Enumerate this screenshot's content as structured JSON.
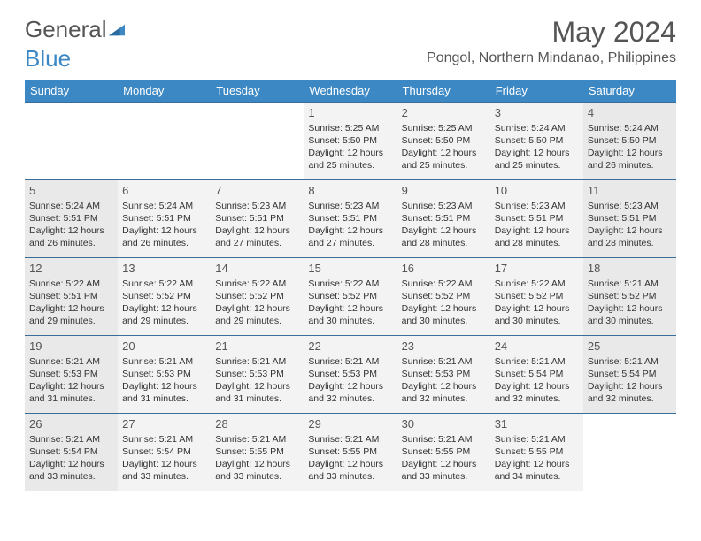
{
  "brand": {
    "part1": "General",
    "part2": "Blue"
  },
  "title": "May 2024",
  "location": "Pongol, Northern Mindanao, Philippines",
  "colors": {
    "header_bg": "#3b88c4",
    "header_text": "#ffffff",
    "cell_bg": "#f3f3f3",
    "weekend_bg": "#e9e9e9",
    "border": "#3b6d99",
    "title_text": "#555555"
  },
  "day_headers": [
    "Sunday",
    "Monday",
    "Tuesday",
    "Wednesday",
    "Thursday",
    "Friday",
    "Saturday"
  ],
  "weeks": [
    [
      null,
      null,
      null,
      {
        "d": "1",
        "sr": "5:25 AM",
        "ss": "5:50 PM",
        "dl": "12 hours and 25 minutes."
      },
      {
        "d": "2",
        "sr": "5:25 AM",
        "ss": "5:50 PM",
        "dl": "12 hours and 25 minutes."
      },
      {
        "d": "3",
        "sr": "5:24 AM",
        "ss": "5:50 PM",
        "dl": "12 hours and 25 minutes."
      },
      {
        "d": "4",
        "sr": "5:24 AM",
        "ss": "5:50 PM",
        "dl": "12 hours and 26 minutes."
      }
    ],
    [
      {
        "d": "5",
        "sr": "5:24 AM",
        "ss": "5:51 PM",
        "dl": "12 hours and 26 minutes."
      },
      {
        "d": "6",
        "sr": "5:24 AM",
        "ss": "5:51 PM",
        "dl": "12 hours and 26 minutes."
      },
      {
        "d": "7",
        "sr": "5:23 AM",
        "ss": "5:51 PM",
        "dl": "12 hours and 27 minutes."
      },
      {
        "d": "8",
        "sr": "5:23 AM",
        "ss": "5:51 PM",
        "dl": "12 hours and 27 minutes."
      },
      {
        "d": "9",
        "sr": "5:23 AM",
        "ss": "5:51 PM",
        "dl": "12 hours and 28 minutes."
      },
      {
        "d": "10",
        "sr": "5:23 AM",
        "ss": "5:51 PM",
        "dl": "12 hours and 28 minutes."
      },
      {
        "d": "11",
        "sr": "5:23 AM",
        "ss": "5:51 PM",
        "dl": "12 hours and 28 minutes."
      }
    ],
    [
      {
        "d": "12",
        "sr": "5:22 AM",
        "ss": "5:51 PM",
        "dl": "12 hours and 29 minutes."
      },
      {
        "d": "13",
        "sr": "5:22 AM",
        "ss": "5:52 PM",
        "dl": "12 hours and 29 minutes."
      },
      {
        "d": "14",
        "sr": "5:22 AM",
        "ss": "5:52 PM",
        "dl": "12 hours and 29 minutes."
      },
      {
        "d": "15",
        "sr": "5:22 AM",
        "ss": "5:52 PM",
        "dl": "12 hours and 30 minutes."
      },
      {
        "d": "16",
        "sr": "5:22 AM",
        "ss": "5:52 PM",
        "dl": "12 hours and 30 minutes."
      },
      {
        "d": "17",
        "sr": "5:22 AM",
        "ss": "5:52 PM",
        "dl": "12 hours and 30 minutes."
      },
      {
        "d": "18",
        "sr": "5:21 AM",
        "ss": "5:52 PM",
        "dl": "12 hours and 30 minutes."
      }
    ],
    [
      {
        "d": "19",
        "sr": "5:21 AM",
        "ss": "5:53 PM",
        "dl": "12 hours and 31 minutes."
      },
      {
        "d": "20",
        "sr": "5:21 AM",
        "ss": "5:53 PM",
        "dl": "12 hours and 31 minutes."
      },
      {
        "d": "21",
        "sr": "5:21 AM",
        "ss": "5:53 PM",
        "dl": "12 hours and 31 minutes."
      },
      {
        "d": "22",
        "sr": "5:21 AM",
        "ss": "5:53 PM",
        "dl": "12 hours and 32 minutes."
      },
      {
        "d": "23",
        "sr": "5:21 AM",
        "ss": "5:53 PM",
        "dl": "12 hours and 32 minutes."
      },
      {
        "d": "24",
        "sr": "5:21 AM",
        "ss": "5:54 PM",
        "dl": "12 hours and 32 minutes."
      },
      {
        "d": "25",
        "sr": "5:21 AM",
        "ss": "5:54 PM",
        "dl": "12 hours and 32 minutes."
      }
    ],
    [
      {
        "d": "26",
        "sr": "5:21 AM",
        "ss": "5:54 PM",
        "dl": "12 hours and 33 minutes."
      },
      {
        "d": "27",
        "sr": "5:21 AM",
        "ss": "5:54 PM",
        "dl": "12 hours and 33 minutes."
      },
      {
        "d": "28",
        "sr": "5:21 AM",
        "ss": "5:55 PM",
        "dl": "12 hours and 33 minutes."
      },
      {
        "d": "29",
        "sr": "5:21 AM",
        "ss": "5:55 PM",
        "dl": "12 hours and 33 minutes."
      },
      {
        "d": "30",
        "sr": "5:21 AM",
        "ss": "5:55 PM",
        "dl": "12 hours and 33 minutes."
      },
      {
        "d": "31",
        "sr": "5:21 AM",
        "ss": "5:55 PM",
        "dl": "12 hours and 34 minutes."
      },
      null
    ]
  ],
  "labels": {
    "sunrise": "Sunrise: ",
    "sunset": "Sunset: ",
    "daylight": "Daylight: "
  }
}
